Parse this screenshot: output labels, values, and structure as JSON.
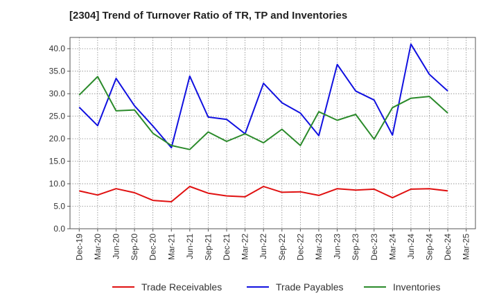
{
  "chart_data": {
    "type": "line",
    "title": "[2304]  Trend of Turnover Ratio of TR, TP and Inventories",
    "xlabel": "",
    "ylabel": "",
    "x": [
      "Dec-19",
      "Mar-20",
      "Jun-20",
      "Sep-20",
      "Dec-20",
      "Mar-21",
      "Jun-21",
      "Sep-21",
      "Dec-21",
      "Mar-22",
      "Jun-22",
      "Sep-22",
      "Dec-22",
      "Mar-23",
      "Jun-23",
      "Sep-23",
      "Dec-23",
      "Mar-24",
      "Jun-24",
      "Sep-24",
      "Dec-24",
      "Mar-25"
    ],
    "ylim": [
      0,
      42.5
    ],
    "yticks": [
      0.0,
      5.0,
      10.0,
      15.0,
      20.0,
      25.0,
      30.0,
      35.0,
      40.0
    ],
    "ytick_labels": [
      "0.0",
      "5.0",
      "10.0",
      "15.0",
      "20.0",
      "25.0",
      "30.0",
      "35.0",
      "40.0"
    ],
    "grid": true,
    "legend_position": "bottom",
    "series": [
      {
        "name": "Trade Receivables",
        "color": "#e01010",
        "values": [
          8.4,
          7.5,
          8.9,
          8.0,
          6.3,
          6.0,
          9.4,
          7.9,
          7.3,
          7.1,
          9.4,
          8.1,
          8.2,
          7.4,
          8.9,
          8.6,
          8.8,
          6.9,
          8.8,
          8.9,
          8.4,
          null
        ]
      },
      {
        "name": "Trade Payables",
        "color": "#1010e0",
        "values": [
          27.0,
          22.9,
          33.4,
          27.3,
          22.8,
          18.0,
          33.9,
          24.8,
          24.3,
          21.1,
          32.3,
          28.0,
          25.7,
          20.7,
          36.5,
          30.6,
          28.6,
          20.8,
          41.0,
          34.3,
          30.6,
          null
        ]
      },
      {
        "name": "Inventories",
        "color": "#2a8a2a",
        "values": [
          29.7,
          33.8,
          26.2,
          26.4,
          21.2,
          18.5,
          17.6,
          21.5,
          19.4,
          21.1,
          19.1,
          22.1,
          18.5,
          26.0,
          24.1,
          25.4,
          19.9,
          26.9,
          29.0,
          29.4,
          25.7,
          null
        ]
      }
    ]
  }
}
